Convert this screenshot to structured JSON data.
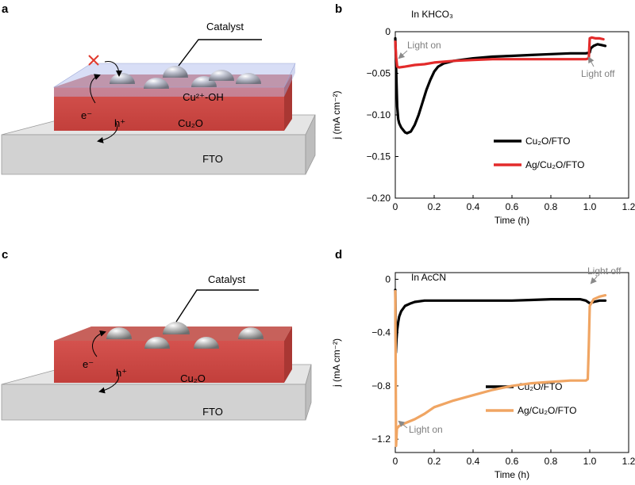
{
  "figure": {
    "panel_a": {
      "letter": "a",
      "catalyst_label": "Catalyst",
      "surface_label": "Cu²⁺-OH",
      "electron_label": "e⁻",
      "hole_label": "h⁺",
      "cu2o_label": "Cu₂O",
      "fto_label": "FTO"
    },
    "panel_c": {
      "letter": "c",
      "catalyst_label": "Catalyst",
      "electron_label": "e⁻",
      "hole_label": "h⁺",
      "cu2o_label": "Cu₂O",
      "fto_label": "FTO"
    }
  },
  "chart_data": [
    {
      "panel": "b",
      "type": "line",
      "condition": "In KHCO₃",
      "xlabel": "Time (h)",
      "ylabel": "j (mA cm⁻²)",
      "xlim": [
        0,
        1.2
      ],
      "ylim": [
        -0.2,
        0
      ],
      "xticks": [
        "0",
        "0.2",
        "0.4",
        "0.6",
        "0.8",
        "1.0",
        "1.2"
      ],
      "yticks": [
        "0",
        "−0.05",
        "−0.10",
        "−0.15",
        "−0.20"
      ],
      "xtick_values": [
        0,
        0.2,
        0.4,
        0.6,
        0.8,
        1.0,
        1.2
      ],
      "ytick_values": [
        0,
        -0.05,
        -0.1,
        -0.15,
        -0.2
      ],
      "annotations": [
        {
          "text": "Light on",
          "x": 0.01,
          "y": -0.015
        },
        {
          "text": "Light off",
          "x": 1.0,
          "y": -0.035
        }
      ],
      "series": [
        {
          "name": "Cu₂O/FTO",
          "color": "#000000",
          "x": [
            0,
            0.003,
            0.006,
            0.01,
            0.015,
            0.02,
            0.03,
            0.04,
            0.05,
            0.06,
            0.08,
            0.1,
            0.12,
            0.14,
            0.16,
            0.18,
            0.2,
            0.22,
            0.25,
            0.3,
            0.4,
            0.5,
            0.6,
            0.7,
            0.8,
            0.9,
            0.98,
            1.0,
            1.005,
            1.02,
            1.04,
            1.06,
            1.08
          ],
          "y": [
            -0.008,
            -0.03,
            -0.06,
            -0.09,
            -0.105,
            -0.11,
            -0.115,
            -0.118,
            -0.121,
            -0.122,
            -0.12,
            -0.112,
            -0.1,
            -0.085,
            -0.07,
            -0.058,
            -0.048,
            -0.042,
            -0.038,
            -0.035,
            -0.032,
            -0.03,
            -0.029,
            -0.028,
            -0.027,
            -0.026,
            -0.026,
            -0.025,
            -0.02,
            -0.017,
            -0.015,
            -0.016,
            -0.017
          ]
        },
        {
          "name": "Ag/Cu₂O/FTO",
          "color": "#e32b2b",
          "x": [
            0,
            0.004,
            0.01,
            0.02,
            0.05,
            0.1,
            0.15,
            0.2,
            0.3,
            0.4,
            0.5,
            0.6,
            0.7,
            0.8,
            0.9,
            0.98,
            0.995,
            1.0,
            1.01,
            1.03,
            1.05,
            1.07
          ],
          "y": [
            -0.012,
            -0.03,
            -0.042,
            -0.043,
            -0.042,
            -0.04,
            -0.039,
            -0.037,
            -0.035,
            -0.034,
            -0.033,
            -0.033,
            -0.033,
            -0.033,
            -0.033,
            -0.033,
            -0.032,
            -0.008,
            -0.007,
            -0.008,
            -0.008,
            -0.009
          ]
        }
      ]
    },
    {
      "panel": "d",
      "type": "line",
      "condition": "In AcCN",
      "xlabel": "Time (h)",
      "ylabel": "j (mA cm⁻²)",
      "xlim": [
        0,
        1.2
      ],
      "ylim": [
        -1.3,
        0.05
      ],
      "xticks": [
        "0",
        "0.2",
        "0.4",
        "0.6",
        "0.8",
        "1.0",
        "1.2"
      ],
      "yticks": [
        "0",
        "−0.4",
        "−0.8",
        "−1.2"
      ],
      "xtick_values": [
        0,
        0.2,
        0.4,
        0.6,
        0.8,
        1.0,
        1.2
      ],
      "ytick_values": [
        0,
        -0.4,
        -0.8,
        -1.2
      ],
      "annotations": [
        {
          "text": "Light on",
          "x": 0.01,
          "y": -1.22
        },
        {
          "text": "Light off",
          "x": 1.0,
          "y": -0.06
        }
      ],
      "series": [
        {
          "name": "Cu₂O/FTO",
          "color": "#000000",
          "x": [
            0,
            0.003,
            0.006,
            0.01,
            0.015,
            0.02,
            0.03,
            0.05,
            0.08,
            0.1,
            0.15,
            0.2,
            0.3,
            0.4,
            0.5,
            0.6,
            0.7,
            0.8,
            0.9,
            0.95,
            0.98,
            1.0,
            1.02,
            1.05,
            1.08
          ],
          "y": [
            -0.08,
            -0.55,
            -0.45,
            -0.38,
            -0.32,
            -0.28,
            -0.24,
            -0.2,
            -0.18,
            -0.17,
            -0.16,
            -0.16,
            -0.16,
            -0.16,
            -0.16,
            -0.16,
            -0.155,
            -0.15,
            -0.15,
            -0.15,
            -0.16,
            -0.18,
            -0.17,
            -0.16,
            -0.16
          ]
        },
        {
          "name": "Ag/Cu₂O/FTO",
          "color": "#f0a563",
          "x": [
            0,
            0.004,
            0.008,
            0.02,
            0.05,
            0.1,
            0.15,
            0.2,
            0.3,
            0.4,
            0.5,
            0.6,
            0.7,
            0.8,
            0.9,
            0.98,
            0.99,
            0.995,
            1.0,
            1.02,
            1.05,
            1.08
          ],
          "y": [
            -0.09,
            -1.25,
            -1.12,
            -1.1,
            -1.08,
            -1.05,
            -1.01,
            -0.96,
            -0.91,
            -0.87,
            -0.83,
            -0.8,
            -0.78,
            -0.77,
            -0.76,
            -0.76,
            -0.75,
            -0.5,
            -0.2,
            -0.15,
            -0.13,
            -0.12
          ]
        }
      ]
    }
  ]
}
